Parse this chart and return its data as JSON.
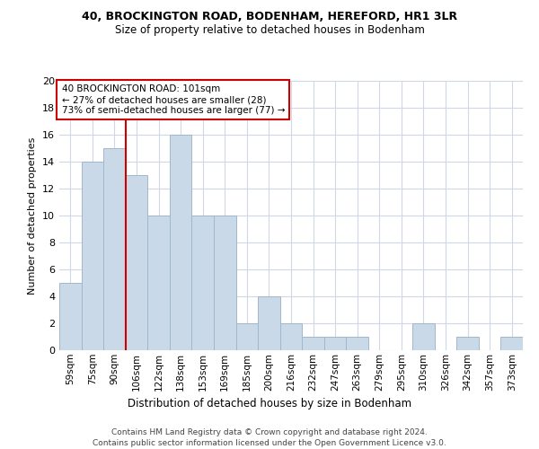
{
  "title1": "40, BROCKINGTON ROAD, BODENHAM, HEREFORD, HR1 3LR",
  "title2": "Size of property relative to detached houses in Bodenham",
  "xlabel": "Distribution of detached houses by size in Bodenham",
  "ylabel": "Number of detached properties",
  "categories": [
    "59sqm",
    "75sqm",
    "90sqm",
    "106sqm",
    "122sqm",
    "138sqm",
    "153sqm",
    "169sqm",
    "185sqm",
    "200sqm",
    "216sqm",
    "232sqm",
    "247sqm",
    "263sqm",
    "279sqm",
    "295sqm",
    "310sqm",
    "326sqm",
    "342sqm",
    "357sqm",
    "373sqm"
  ],
  "values": [
    5,
    14,
    15,
    13,
    10,
    16,
    10,
    10,
    2,
    4,
    2,
    1,
    1,
    1,
    0,
    0,
    2,
    0,
    1,
    0,
    1
  ],
  "bar_color": "#c9d9e8",
  "bar_edgecolor": "#a0b8cc",
  "redline_index": 3,
  "annotation_line1": "40 BROCKINGTON ROAD: 101sqm",
  "annotation_line2": "← 27% of detached houses are smaller (28)",
  "annotation_line3": "73% of semi-detached houses are larger (77) →",
  "annotation_box_color": "#ffffff",
  "annotation_box_edgecolor": "#cc0000",
  "redline_color": "#cc0000",
  "ylim": [
    0,
    20
  ],
  "yticks": [
    0,
    2,
    4,
    6,
    8,
    10,
    12,
    14,
    16,
    18,
    20
  ],
  "footer1": "Contains HM Land Registry data © Crown copyright and database right 2024.",
  "footer2": "Contains public sector information licensed under the Open Government Licence v3.0.",
  "background_color": "#ffffff",
  "grid_color": "#d0d8e8"
}
